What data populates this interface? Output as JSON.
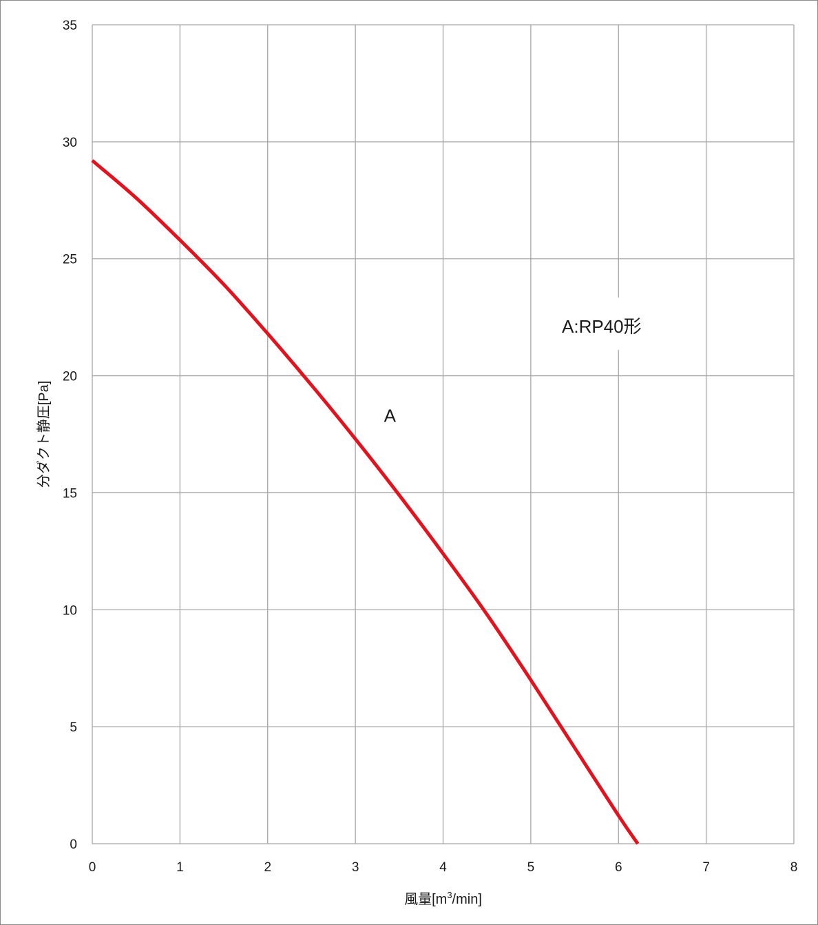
{
  "chart_data": {
    "type": "line",
    "xlabel_main": "風量[m",
    "xlabel_sup": "3",
    "xlabel_tail": "/min]",
    "ylabel": "分ダクト静圧[Pa]",
    "xlim": [
      0,
      8
    ],
    "ylim": [
      0,
      35
    ],
    "x_ticks": [
      "0",
      "1",
      "2",
      "3",
      "4",
      "5",
      "6",
      "7",
      "8"
    ],
    "y_ticks": [
      "0",
      "5",
      "10",
      "15",
      "20",
      "25",
      "30",
      "35"
    ],
    "grid": true,
    "legend_text": "A:RP40形",
    "series": [
      {
        "name": "A",
        "color": "#e0141e",
        "x": [
          0,
          0.5,
          1.0,
          1.5,
          2.0,
          2.5,
          3.0,
          3.5,
          4.0,
          4.5,
          5.0,
          5.5,
          6.0,
          6.22
        ],
        "y": [
          29.2,
          27.6,
          25.8,
          23.9,
          21.8,
          19.6,
          17.3,
          14.9,
          12.4,
          9.8,
          7.0,
          4.1,
          1.2,
          0
        ]
      }
    ],
    "series_label": {
      "text": "A",
      "x": 3.42,
      "y": 18.3
    }
  }
}
